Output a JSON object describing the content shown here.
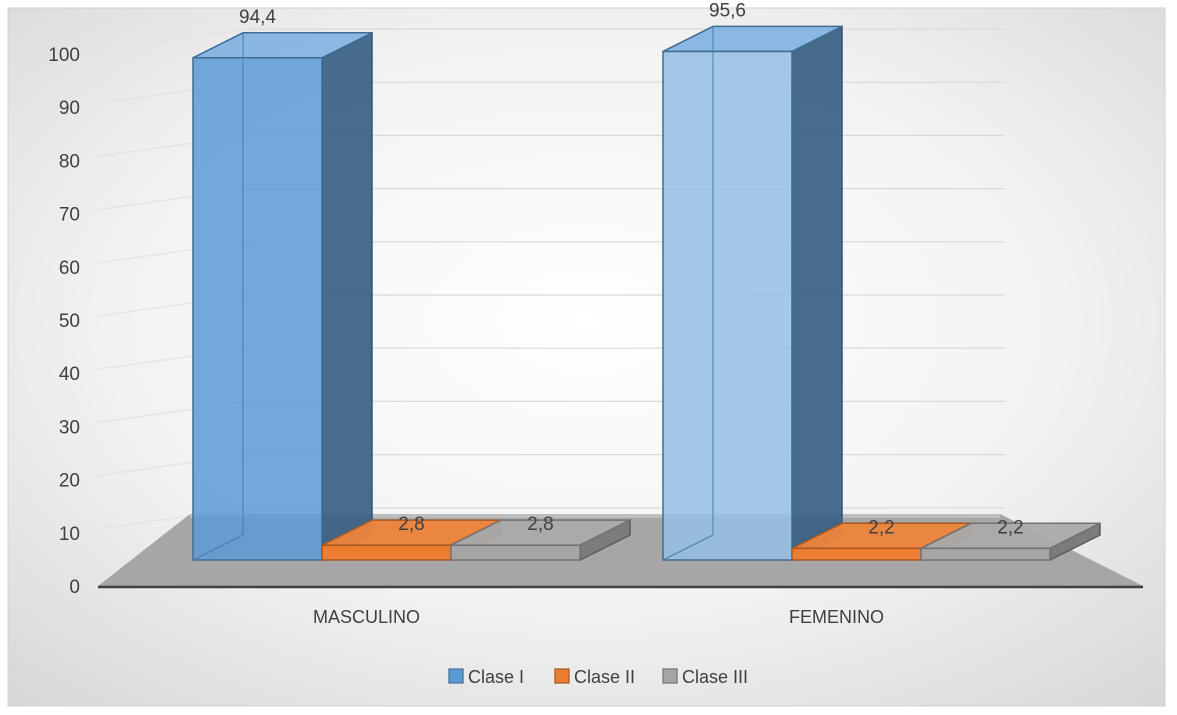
{
  "chart_data": {
    "type": "bar",
    "title": "",
    "xlabel": "",
    "ylabel": "",
    "ylim": [
      0,
      100
    ],
    "yticks": [
      0,
      10,
      20,
      30,
      40,
      50,
      60,
      70,
      80,
      90,
      100
    ],
    "categories": [
      "MASCULINO",
      "FEMENINO"
    ],
    "series": [
      {
        "name": "Clase I",
        "values": [
          94.4,
          95.6
        ],
        "labels": [
          "94,4",
          "95,6"
        ],
        "color": "#5B9BD5"
      },
      {
        "name": "Clase II",
        "values": [
          2.8,
          2.2
        ],
        "labels": [
          "2,8",
          "2,2"
        ],
        "color": "#ED7D31"
      },
      {
        "name": "Clase III",
        "values": [
          2.8,
          2.2
        ],
        "labels": [
          "2,8",
          "2,2"
        ],
        "color": "#A5A5A5"
      }
    ],
    "legend_position": "bottom",
    "grid": true,
    "style": "3d-column"
  }
}
